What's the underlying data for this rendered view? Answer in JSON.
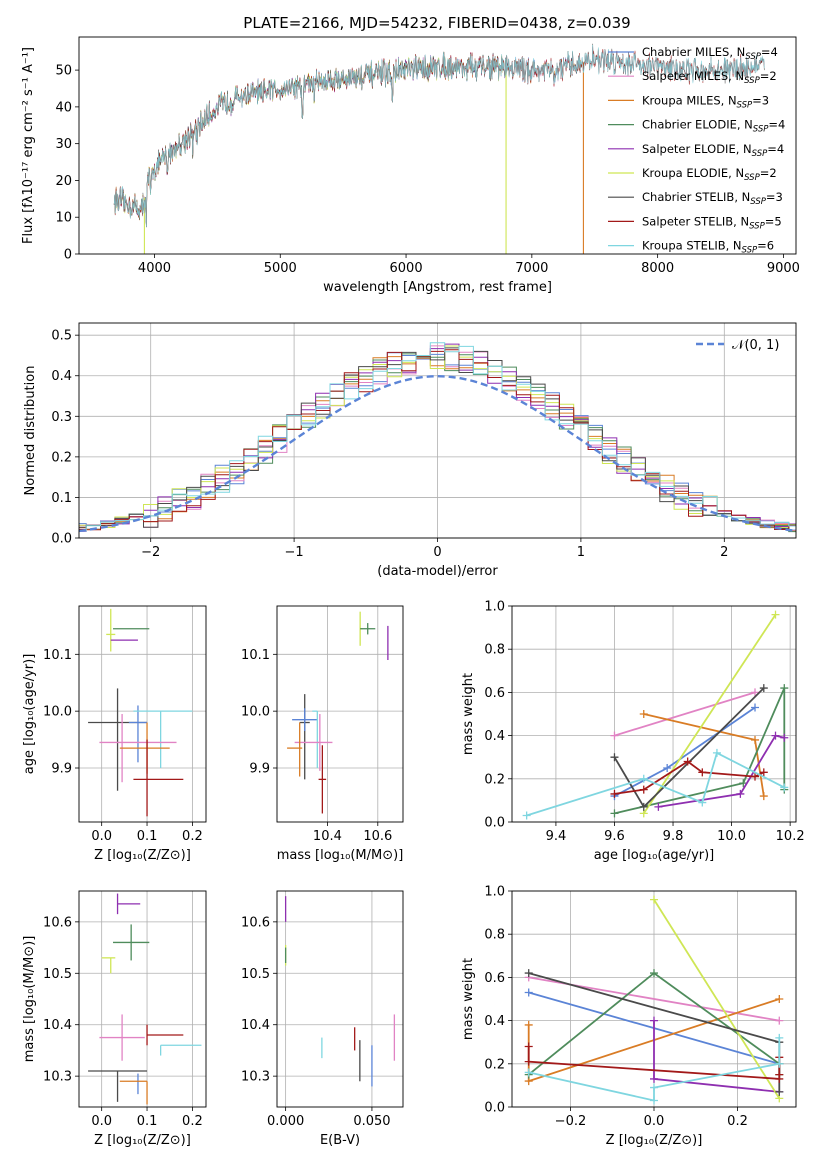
{
  "figure_title": "PLATE=2166, MJD=54232, FIBERID=0438, z=0.039",
  "colors": {
    "Chabrier MILES": "#5b84d6",
    "Salpeter MILES": "#e183c4",
    "Kroupa MILES": "#d97c25",
    "Chabrier ELODIE": "#4f8c5c",
    "Salpeter ELODIE": "#8e2fb0",
    "Kroupa ELODIE": "#cfe655",
    "Chabrier STELIB": "#4a4a4a",
    "Salpeter STELIB": "#a21919",
    "Kroupa STELIB": "#7fd6e0",
    "normal_curve": "#5b84d6",
    "grid": "#b0b0b0"
  },
  "chart_data": [
    {
      "id": "spectrum",
      "type": "line",
      "title": "PLATE=2166, MJD=54232, FIBERID=0438, z=0.039",
      "xlabel": "wavelength [Angstrom, rest frame]",
      "ylabel": "Flux [fλ10⁻¹⁷ erg cm⁻² s⁻¹ A⁻¹]",
      "xlim": [
        3400,
        9100
      ],
      "ylim": [
        0,
        59
      ],
      "xticks": [
        "4000",
        "5000",
        "6000",
        "7000",
        "8000",
        "9000"
      ],
      "yticks": [
        "0",
        "10",
        "20",
        "30",
        "40",
        "50"
      ],
      "grid": false,
      "legend_position": "top-right",
      "legend": [
        {
          "label": "Chabrier MILES, N",
          "sub": "SSP",
          "tail": "=4",
          "color": "#5b84d6"
        },
        {
          "label": "Salpeter MILES, N",
          "sub": "SSP",
          "tail": "=2",
          "color": "#e183c4"
        },
        {
          "label": "Kroupa MILES, N",
          "sub": "SSP",
          "tail": "=3",
          "color": "#d97c25"
        },
        {
          "label": "Chabrier ELODIE, N",
          "sub": "SSP",
          "tail": "=4",
          "color": "#4f8c5c"
        },
        {
          "label": "Salpeter ELODIE, N",
          "sub": "SSP",
          "tail": "=4",
          "color": "#8e2fb0"
        },
        {
          "label": "Kroupa ELODIE, N",
          "sub": "SSP",
          "tail": "=2",
          "color": "#cfe655"
        },
        {
          "label": "Chabrier STELIB, N",
          "sub": "SSP",
          "tail": "=3",
          "color": "#4a4a4a"
        },
        {
          "label": "Salpeter STELIB, N",
          "sub": "SSP",
          "tail": "=5",
          "color": "#a21919"
        },
        {
          "label": "Kroupa STELIB, N",
          "sub": "SSP",
          "tail": "=6",
          "color": "#7fd6e0"
        }
      ],
      "continuum": [
        [
          3680,
          15
        ],
        [
          3900,
          12
        ],
        [
          3960,
          22
        ],
        [
          4100,
          27
        ],
        [
          4300,
          33
        ],
        [
          4500,
          40
        ],
        [
          4700,
          43
        ],
        [
          5000,
          45
        ],
        [
          5300,
          47
        ],
        [
          5600,
          48
        ],
        [
          6000,
          50
        ],
        [
          6300,
          51
        ],
        [
          6600,
          51
        ],
        [
          6800,
          51
        ],
        [
          7000,
          50
        ],
        [
          7200,
          50
        ],
        [
          7500,
          53
        ],
        [
          7800,
          52
        ],
        [
          8200,
          50
        ],
        [
          8500,
          50
        ],
        [
          8800,
          51
        ]
      ],
      "absorption_lines": [
        [
          3934,
          8
        ],
        [
          3969,
          7
        ],
        [
          4102,
          5
        ],
        [
          4304,
          5
        ],
        [
          4341,
          4
        ],
        [
          4861,
          4
        ],
        [
          5175,
          13
        ],
        [
          5270,
          4
        ],
        [
          5892,
          8
        ],
        [
          6563,
          3
        ],
        [
          7180,
          4
        ]
      ],
      "dropouts": [
        {
          "series": "Kroupa ELODIE",
          "x": 3920
        },
        {
          "series": "Kroupa ELODIE",
          "x": 6795
        },
        {
          "series": "Kroupa MILES",
          "x": 7410
        }
      ],
      "range_ends": {
        "MILES": 7400,
        "ELODIE": 6800,
        "STELIB": 8850
      }
    },
    {
      "id": "residuals",
      "type": "histogram",
      "xlabel": "(data-model)/error",
      "ylabel": "Normed distribution",
      "xlim": [
        -2.5,
        2.5
      ],
      "ylim": [
        0,
        0.53
      ],
      "xticks": [
        "−2",
        "−1",
        "0",
        "1",
        "2"
      ],
      "yticks": [
        "0.0",
        "0.1",
        "0.2",
        "0.3",
        "0.4",
        "0.5"
      ],
      "grid": true,
      "legend_position": "top-right",
      "normal_label": "𝒩(0, 1)",
      "bin_width": 0.1,
      "x_start": -2.55
    },
    {
      "id": "age_vs_Z",
      "type": "scatter",
      "xlabel": "Z [log₁₀(Z/Z⊙)]",
      "ylabel": "age  [log₁₀(age/yr)]",
      "xlim": [
        -0.05,
        0.23
      ],
      "ylim": [
        9.805,
        10.185
      ],
      "xticks": [
        "0.0",
        "0.1",
        "0.2"
      ],
      "yticks": [
        "9.9",
        "10.0",
        "10.1"
      ],
      "grid": true,
      "points": [
        {
          "series": "Kroupa ELODIE",
          "x": 0.02,
          "y": 10.135,
          "xerr": [
            0.01,
            0.01
          ],
          "yerr": [
            0.03,
            0.045
          ]
        },
        {
          "series": "Chabrier ELODIE",
          "x": 0.065,
          "y": 10.145,
          "xerr": [
            0.04,
            0.04
          ],
          "yerr": [
            0.0,
            0.0
          ]
        },
        {
          "series": "Salpeter ELODIE",
          "x": 0.05,
          "y": 10.125,
          "xerr": [
            0.03,
            0.03
          ],
          "yerr": [
            0.0,
            0.0
          ]
        },
        {
          "series": "Chabrier STELIB",
          "x": 0.035,
          "y": 9.98,
          "xerr": [
            0.065,
            0.065
          ],
          "yerr": [
            0.12,
            0.06
          ]
        },
        {
          "series": "Chabrier MILES",
          "x": 0.08,
          "y": 9.98,
          "xerr": [
            0.02,
            0.02
          ],
          "yerr": [
            0.07,
            0.03
          ]
        },
        {
          "series": "Kroupa STELIB",
          "x": 0.13,
          "y": 10.0,
          "xerr": [
            0.06,
            0.07
          ],
          "yerr": [
            0.1,
            0.0
          ]
        },
        {
          "series": "Salpeter MILES",
          "x": 0.045,
          "y": 9.945,
          "xerr": [
            0.05,
            0.12
          ],
          "yerr": [
            0.07,
            0.05
          ]
        },
        {
          "series": "Kroupa MILES",
          "x": 0.1,
          "y": 9.935,
          "xerr": [
            0.06,
            0.05
          ],
          "yerr": [
            0.045,
            0.045
          ]
        },
        {
          "series": "Salpeter STELIB",
          "x": 0.1,
          "y": 9.88,
          "xerr": [
            0.03,
            0.08
          ],
          "yerr": [
            0.065,
            0.07
          ]
        }
      ]
    },
    {
      "id": "age_vs_mass",
      "type": "scatter",
      "xlabel": "mass [log₁₀(M/M⊙)]",
      "ylabel": "",
      "xlim": [
        10.2,
        10.7
      ],
      "ylim": [
        9.805,
        10.185
      ],
      "xticks": [
        "10.4",
        "10.6"
      ],
      "yticks": [
        "9.9",
        "10.0",
        "10.1"
      ],
      "grid": true,
      "points": [
        {
          "series": "Kroupa ELODIE",
          "x": 10.53,
          "y": 10.145,
          "xerr": [
            0.0,
            0.01
          ],
          "yerr": [
            0.03,
            0.03
          ]
        },
        {
          "series": "Chabrier ELODIE",
          "x": 10.56,
          "y": 10.145,
          "xerr": [
            0.03,
            0.03
          ],
          "yerr": [
            0.01,
            0.01
          ]
        },
        {
          "series": "Salpeter ELODIE",
          "x": 10.64,
          "y": 10.125,
          "xerr": [
            0.0,
            0.0
          ],
          "yerr": [
            0.035,
            0.025
          ]
        },
        {
          "series": "Chabrier STELIB",
          "x": 10.31,
          "y": 9.98,
          "xerr": [
            0.02,
            0.02
          ],
          "yerr": [
            0.1,
            0.05
          ]
        },
        {
          "series": "Chabrier MILES",
          "x": 10.31,
          "y": 9.985,
          "xerr": [
            0.05,
            0.05
          ],
          "yerr": [
            0.02,
            0.02
          ]
        },
        {
          "series": "Kroupa STELIB",
          "x": 10.36,
          "y": 10.0,
          "xerr": [
            0.02,
            0.0
          ],
          "yerr": [
            0.1,
            0.0
          ]
        },
        {
          "series": "Salpeter MILES",
          "x": 10.37,
          "y": 9.945,
          "xerr": [
            0.1,
            0.05
          ],
          "yerr": [
            0.05,
            0.05
          ]
        },
        {
          "series": "Kroupa MILES",
          "x": 10.29,
          "y": 9.935,
          "xerr": [
            0.05,
            0.01
          ],
          "yerr": [
            0.05,
            0.045
          ]
        },
        {
          "series": "Salpeter STELIB",
          "x": 10.38,
          "y": 9.88,
          "xerr": [
            0.015,
            0.015
          ],
          "yerr": [
            0.06,
            0.06
          ]
        }
      ]
    },
    {
      "id": "weight_vs_age",
      "type": "line",
      "xlabel": "age  [log₁₀(age/yr)]",
      "ylabel": "mass weight",
      "xlim": [
        9.25,
        10.22
      ],
      "ylim": [
        0,
        1.0
      ],
      "xticks": [
        "9.4",
        "9.6",
        "9.8",
        "10.0",
        "10.2"
      ],
      "yticks": [
        "0.0",
        "0.2",
        "0.4",
        "0.6",
        "0.8",
        "1.0"
      ],
      "grid": true,
      "series": [
        {
          "name": "Chabrier MILES",
          "x": [
            9.6,
            9.78,
            10.08
          ],
          "y": [
            0.12,
            0.25,
            0.53
          ]
        },
        {
          "name": "Salpeter MILES",
          "x": [
            9.6,
            10.08
          ],
          "y": [
            0.4,
            0.6
          ]
        },
        {
          "name": "Kroupa MILES",
          "x": [
            9.7,
            10.08,
            10.11
          ],
          "y": [
            0.5,
            0.38,
            0.12
          ]
        },
        {
          "name": "Chabrier ELODIE",
          "x": [
            9.6,
            10.04,
            10.18,
            10.18
          ],
          "y": [
            0.04,
            0.18,
            0.62,
            0.15
          ]
        },
        {
          "name": "Salpeter ELODIE",
          "x": [
            9.75,
            10.03,
            10.15,
            10.18
          ],
          "y": [
            0.07,
            0.13,
            0.4,
            0.39
          ]
        },
        {
          "name": "Kroupa ELODIE",
          "x": [
            9.7,
            10.15
          ],
          "y": [
            0.04,
            0.96
          ]
        },
        {
          "name": "Chabrier STELIB",
          "x": [
            9.6,
            9.7,
            10.11
          ],
          "y": [
            0.3,
            0.07,
            0.62
          ]
        },
        {
          "name": "Salpeter STELIB",
          "x": [
            9.6,
            9.7,
            9.85,
            9.9,
            10.08,
            10.11
          ],
          "y": [
            0.13,
            0.15,
            0.28,
            0.23,
            0.21,
            0.23
          ]
        },
        {
          "name": "Kroupa STELIB",
          "x": [
            9.3,
            9.7,
            9.9,
            9.95,
            10.18
          ],
          "y": [
            0.03,
            0.2,
            0.09,
            0.32,
            0.16
          ]
        }
      ]
    },
    {
      "id": "mass_vs_Z",
      "type": "scatter",
      "xlabel": "Z [log₁₀(Z/Z⊙)]",
      "ylabel": "mass [log₁₀(M/M⊙)]",
      "xlim": [
        -0.05,
        0.23
      ],
      "ylim": [
        10.24,
        10.66
      ],
      "xticks": [
        "0.0",
        "0.1",
        "0.2"
      ],
      "yticks": [
        "10.3",
        "10.4",
        "10.5",
        "10.6"
      ],
      "grid": true,
      "points": [
        {
          "series": "Salpeter ELODIE",
          "x": 0.035,
          "y": 10.635,
          "xerr": [
            0.0,
            0.05
          ],
          "yerr": [
            0.02,
            0.02
          ]
        },
        {
          "series": "Chabrier ELODIE",
          "x": 0.065,
          "y": 10.56,
          "xerr": [
            0.04,
            0.04
          ],
          "yerr": [
            0.035,
            0.035
          ]
        },
        {
          "series": "Kroupa ELODIE",
          "x": 0.02,
          "y": 10.53,
          "xerr": [
            0.02,
            0.01
          ],
          "yerr": [
            0.03,
            0.0
          ]
        },
        {
          "series": "Salpeter MILES",
          "x": 0.045,
          "y": 10.375,
          "xerr": [
            0.05,
            0.05
          ],
          "yerr": [
            0.045,
            0.045
          ]
        },
        {
          "series": "Salpeter STELIB",
          "x": 0.1,
          "y": 10.38,
          "xerr": [
            0.0,
            0.08
          ],
          "yerr": [
            0.02,
            0.02
          ]
        },
        {
          "series": "Kroupa STELIB",
          "x": 0.13,
          "y": 10.36,
          "xerr": [
            0.0,
            0.09
          ],
          "yerr": [
            0.02,
            0.0
          ]
        },
        {
          "series": "Chabrier STELIB",
          "x": 0.035,
          "y": 10.31,
          "xerr": [
            0.065,
            0.065
          ],
          "yerr": [
            0.06,
            0.0
          ]
        },
        {
          "series": "Chabrier MILES",
          "x": 0.08,
          "y": 10.305,
          "xerr": [
            0.0,
            0.0
          ],
          "yerr": [
            0.04,
            0.0
          ]
        },
        {
          "series": "Kroupa MILES",
          "x": 0.1,
          "y": 10.29,
          "xerr": [
            0.06,
            0.0
          ],
          "yerr": [
            0.045,
            0.0
          ]
        }
      ]
    },
    {
      "id": "mass_vs_ebv",
      "type": "scatter",
      "xlabel": "E(B-V)",
      "ylabel": "",
      "xlim": [
        -0.005,
        0.068
      ],
      "ylim": [
        10.24,
        10.66
      ],
      "xticks": [
        "0.000",
        "0.050"
      ],
      "yticks": [
        "10.3",
        "10.4",
        "10.5",
        "10.6"
      ],
      "grid": true,
      "points": [
        {
          "series": "Salpeter ELODIE",
          "x": 0.0,
          "y": 10.625,
          "yerr": [
            0.025,
            0.025
          ]
        },
        {
          "series": "Kroupa ELODIE",
          "x": 0.0,
          "y": 10.535,
          "yerr": [
            0.02,
            0.02
          ]
        },
        {
          "series": "Chabrier ELODIE",
          "x": 0.0,
          "y": 10.55,
          "yerr": [
            0.03,
            0.0
          ]
        },
        {
          "series": "Kroupa STELIB",
          "x": 0.021,
          "y": 10.355,
          "yerr": [
            0.02,
            0.02
          ]
        },
        {
          "series": "Salpeter STELIB",
          "x": 0.04,
          "y": 10.37,
          "yerr": [
            0.02,
            0.025
          ]
        },
        {
          "series": "Chabrier STELIB",
          "x": 0.043,
          "y": 10.33,
          "yerr": [
            0.04,
            0.04
          ]
        },
        {
          "series": "Chabrier MILES",
          "x": 0.05,
          "y": 10.32,
          "yerr": [
            0.04,
            0.04
          ]
        },
        {
          "series": "Salpeter MILES",
          "x": 0.063,
          "y": 10.375,
          "yerr": [
            0.045,
            0.045
          ]
        }
      ]
    },
    {
      "id": "weight_vs_Z",
      "type": "line",
      "xlabel": "Z [log₁₀(Z/Z⊙)]",
      "ylabel": "mass weight",
      "xlim": [
        -0.34,
        0.34
      ],
      "ylim": [
        0,
        1.0
      ],
      "xticks": [
        "−0.2",
        "0.0",
        "0.2"
      ],
      "yticks": [
        "0.0",
        "0.2",
        "0.4",
        "0.6",
        "0.8",
        "1.0"
      ],
      "grid": true,
      "series": [
        {
          "name": "Chabrier MILES",
          "x": [
            -0.3,
            0.3
          ],
          "y": [
            0.53,
            0.2
          ]
        },
        {
          "name": "Salpeter MILES",
          "x": [
            -0.3,
            0.3
          ],
          "y": [
            0.6,
            0.4
          ]
        },
        {
          "name": "Kroupa MILES",
          "x": [
            -0.3,
            -0.3,
            0.3
          ],
          "y": [
            0.38,
            0.12,
            0.5
          ]
        },
        {
          "name": "Chabrier ELODIE",
          "x": [
            -0.3,
            0.0,
            0.3,
            0.3
          ],
          "y": [
            0.15,
            0.62,
            0.2,
            0.15
          ]
        },
        {
          "name": "Salpeter ELODIE",
          "x": [
            0.0,
            0.0,
            0.3
          ],
          "y": [
            0.4,
            0.13,
            0.07
          ]
        },
        {
          "name": "Kroupa ELODIE",
          "x": [
            0.0,
            0.3
          ],
          "y": [
            0.96,
            0.04
          ]
        },
        {
          "name": "Chabrier STELIB",
          "x": [
            -0.3,
            0.3,
            0.3
          ],
          "y": [
            0.62,
            0.3,
            0.07
          ]
        },
        {
          "name": "Salpeter STELIB",
          "x": [
            -0.3,
            -0.3,
            0.3,
            0.3,
            0.3
          ],
          "y": [
            0.28,
            0.21,
            0.13,
            0.15,
            0.23
          ]
        },
        {
          "name": "Kroupa STELIB",
          "x": [
            -0.3,
            0.0,
            0.0,
            0.3,
            0.3
          ],
          "y": [
            0.16,
            0.03,
            0.09,
            0.2,
            0.32
          ]
        }
      ]
    }
  ]
}
